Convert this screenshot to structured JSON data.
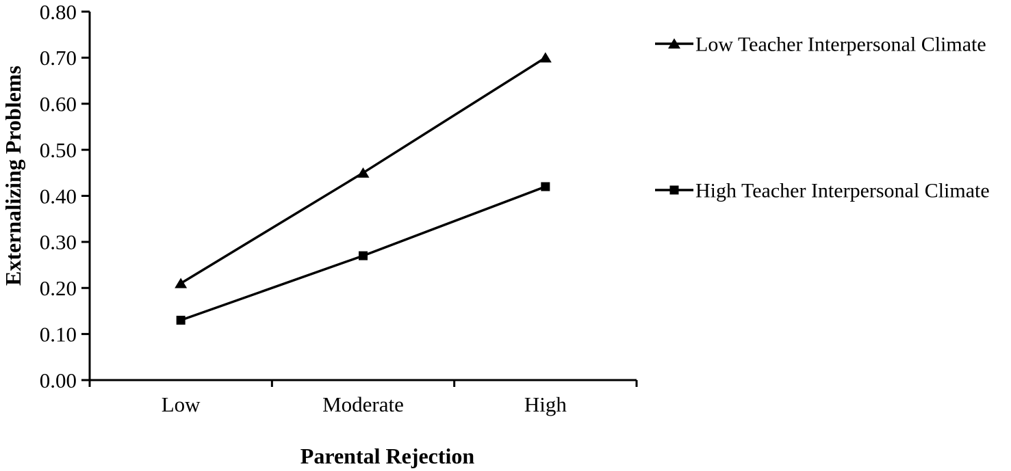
{
  "chart_data": {
    "type": "line",
    "title": "",
    "categories": [
      "Low",
      "Moderate",
      "High"
    ],
    "series": [
      {
        "name": "Low Teacher Interpersonal Climate",
        "marker": "triangle",
        "values": [
          0.21,
          0.45,
          0.7
        ]
      },
      {
        "name": "High Teacher Interpersonal Climate",
        "marker": "square",
        "values": [
          0.13,
          0.27,
          0.42
        ]
      }
    ],
    "xlabel": "Parental Rejection",
    "ylabel": "Externalizing Problems",
    "ylim": [
      0.0,
      0.8
    ],
    "ytick_step": 0.1,
    "ytick_labels": [
      "0.00",
      "0.10",
      "0.20",
      "0.30",
      "0.40",
      "0.50",
      "0.60",
      "0.70",
      "0.80"
    ],
    "grid": "off",
    "legend_position": "right",
    "line_color": "#000000",
    "background_color": "#ffffff"
  }
}
